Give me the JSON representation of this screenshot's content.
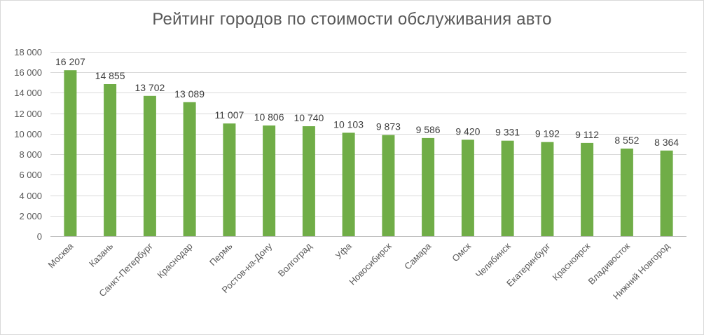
{
  "chart_data": {
    "type": "bar",
    "title": "Рейтинг городов по стоимости обслуживания авто",
    "xlabel": "",
    "ylabel": "",
    "ylim": [
      0,
      18000
    ],
    "y_ticks": [
      "0",
      "2 000",
      "4 000",
      "6 000",
      "8 000",
      "10 000",
      "12 000",
      "14 000",
      "16 000",
      "18 000"
    ],
    "grid": true,
    "legend": "none",
    "bar_color": "#70ad47",
    "categories": [
      "Москва",
      "Казань",
      "Санкт-Петербург",
      "Краснодар",
      "Пермь",
      "Ростов-на-Дону",
      "Волгоград",
      "Уфа",
      "Новосибирск",
      "Самара",
      "Омск",
      "Челябинск",
      "Екатеринбург",
      "Красноярск",
      "Владивосток",
      "Нижний Новгород"
    ],
    "values": [
      16207,
      14855,
      13702,
      13089,
      11007,
      10806,
      10740,
      10103,
      9873,
      9586,
      9420,
      9331,
      9192,
      9112,
      8552,
      8364
    ],
    "value_labels": [
      "16 207",
      "14 855",
      "13 702",
      "13 089",
      "11 007",
      "10 806",
      "10 740",
      "10 103",
      "9 873",
      "9 586",
      "9 420",
      "9 331",
      "9 192",
      "9 112",
      "8 552",
      "8 364"
    ]
  }
}
